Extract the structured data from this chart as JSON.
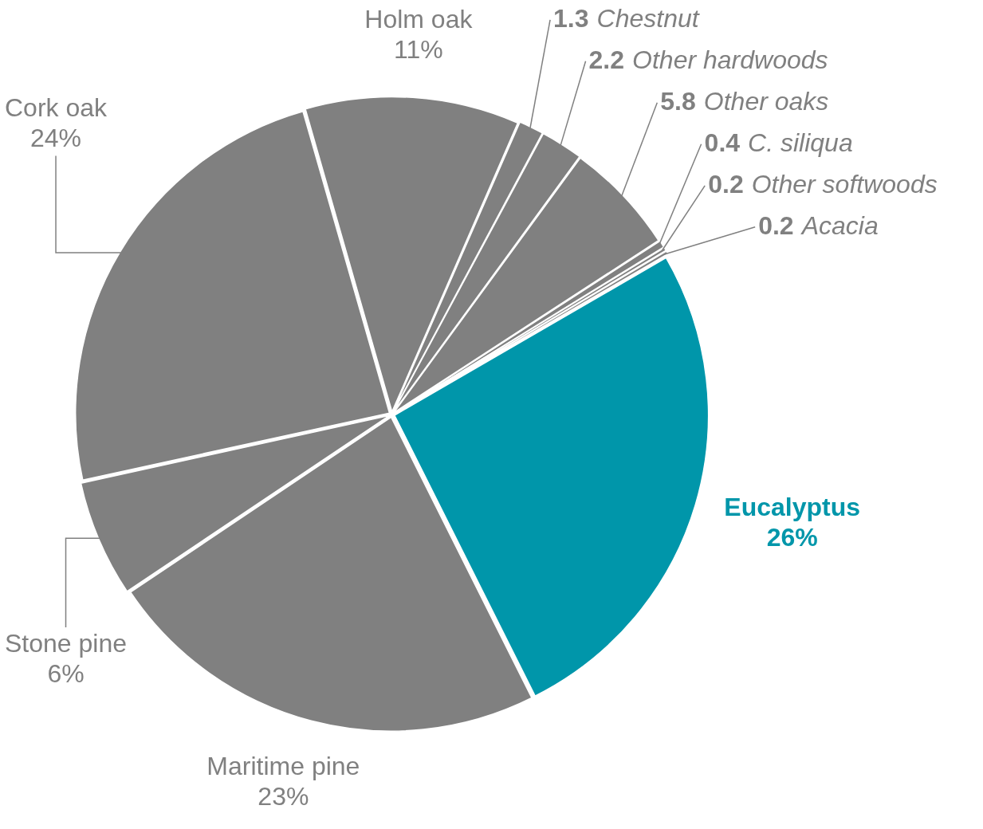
{
  "chart_data": {
    "type": "pie",
    "categories": [
      "Holm oak",
      "Chestnut",
      "Other hardwoods",
      "Other oaks",
      "C. siliqua",
      "Other softwoods",
      "Acacia",
      "Eucalyptus",
      "Maritime pine",
      "Stone pine",
      "Cork oak"
    ],
    "values": [
      11,
      1.3,
      2.2,
      5.8,
      0.4,
      0.2,
      0.2,
      26,
      23,
      6,
      24
    ],
    "value_labels": [
      "11%",
      "1.3",
      "2.2",
      "5.8",
      "0.4",
      "0.2",
      "0.2",
      "26%",
      "23%",
      "6%",
      "24%"
    ],
    "colors": [
      "#808080",
      "#808080",
      "#808080",
      "#808080",
      "#808080",
      "#808080",
      "#808080",
      "#0096aa",
      "#808080",
      "#808080",
      "#808080"
    ],
    "legend": false
  }
}
